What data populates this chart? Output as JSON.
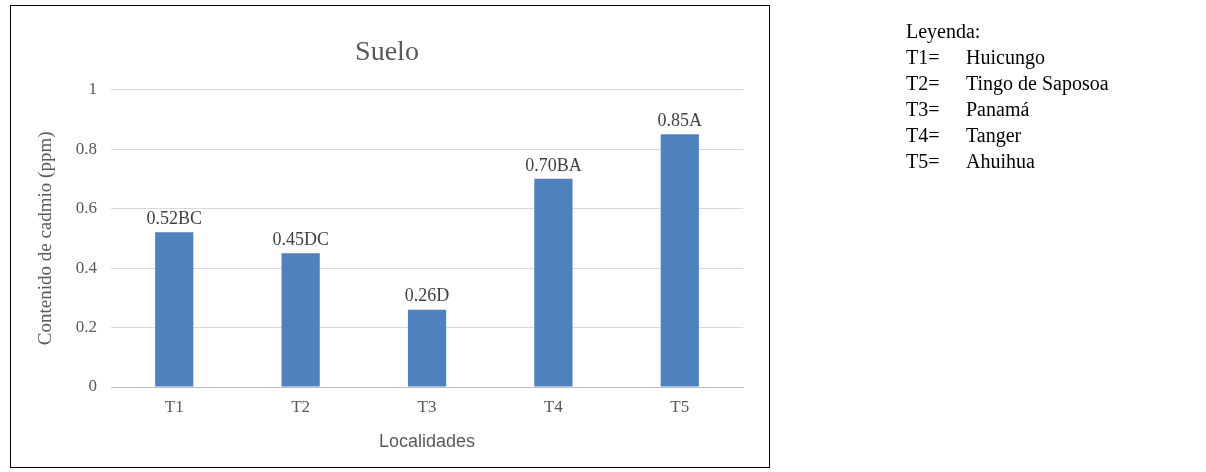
{
  "chart_data": {
    "type": "bar",
    "title": "Suelo",
    "xlabel": "Localidades",
    "ylabel": "Contenido de cadmio (ppm)",
    "categories": [
      "T1",
      "T2",
      "T3",
      "T4",
      "T5"
    ],
    "values": [
      0.52,
      0.45,
      0.26,
      0.7,
      0.85
    ],
    "value_labels": [
      "0.52BC",
      "0.45DC",
      "0.26D",
      "0.70BA",
      "0.85A"
    ],
    "color": "#4f81bd",
    "ylim": [
      0,
      1
    ],
    "yticks": [
      0,
      0.2,
      0.4,
      0.6,
      0.8,
      1
    ],
    "grid": "y",
    "legend": false,
    "annotations": [
      "Leyenda:",
      "T1=\tHuicungo",
      "T2=\tTingo de Saposoa",
      "T3=\tPanamá",
      "T4=\tTanger",
      "T5=\tAhuihua"
    ]
  }
}
